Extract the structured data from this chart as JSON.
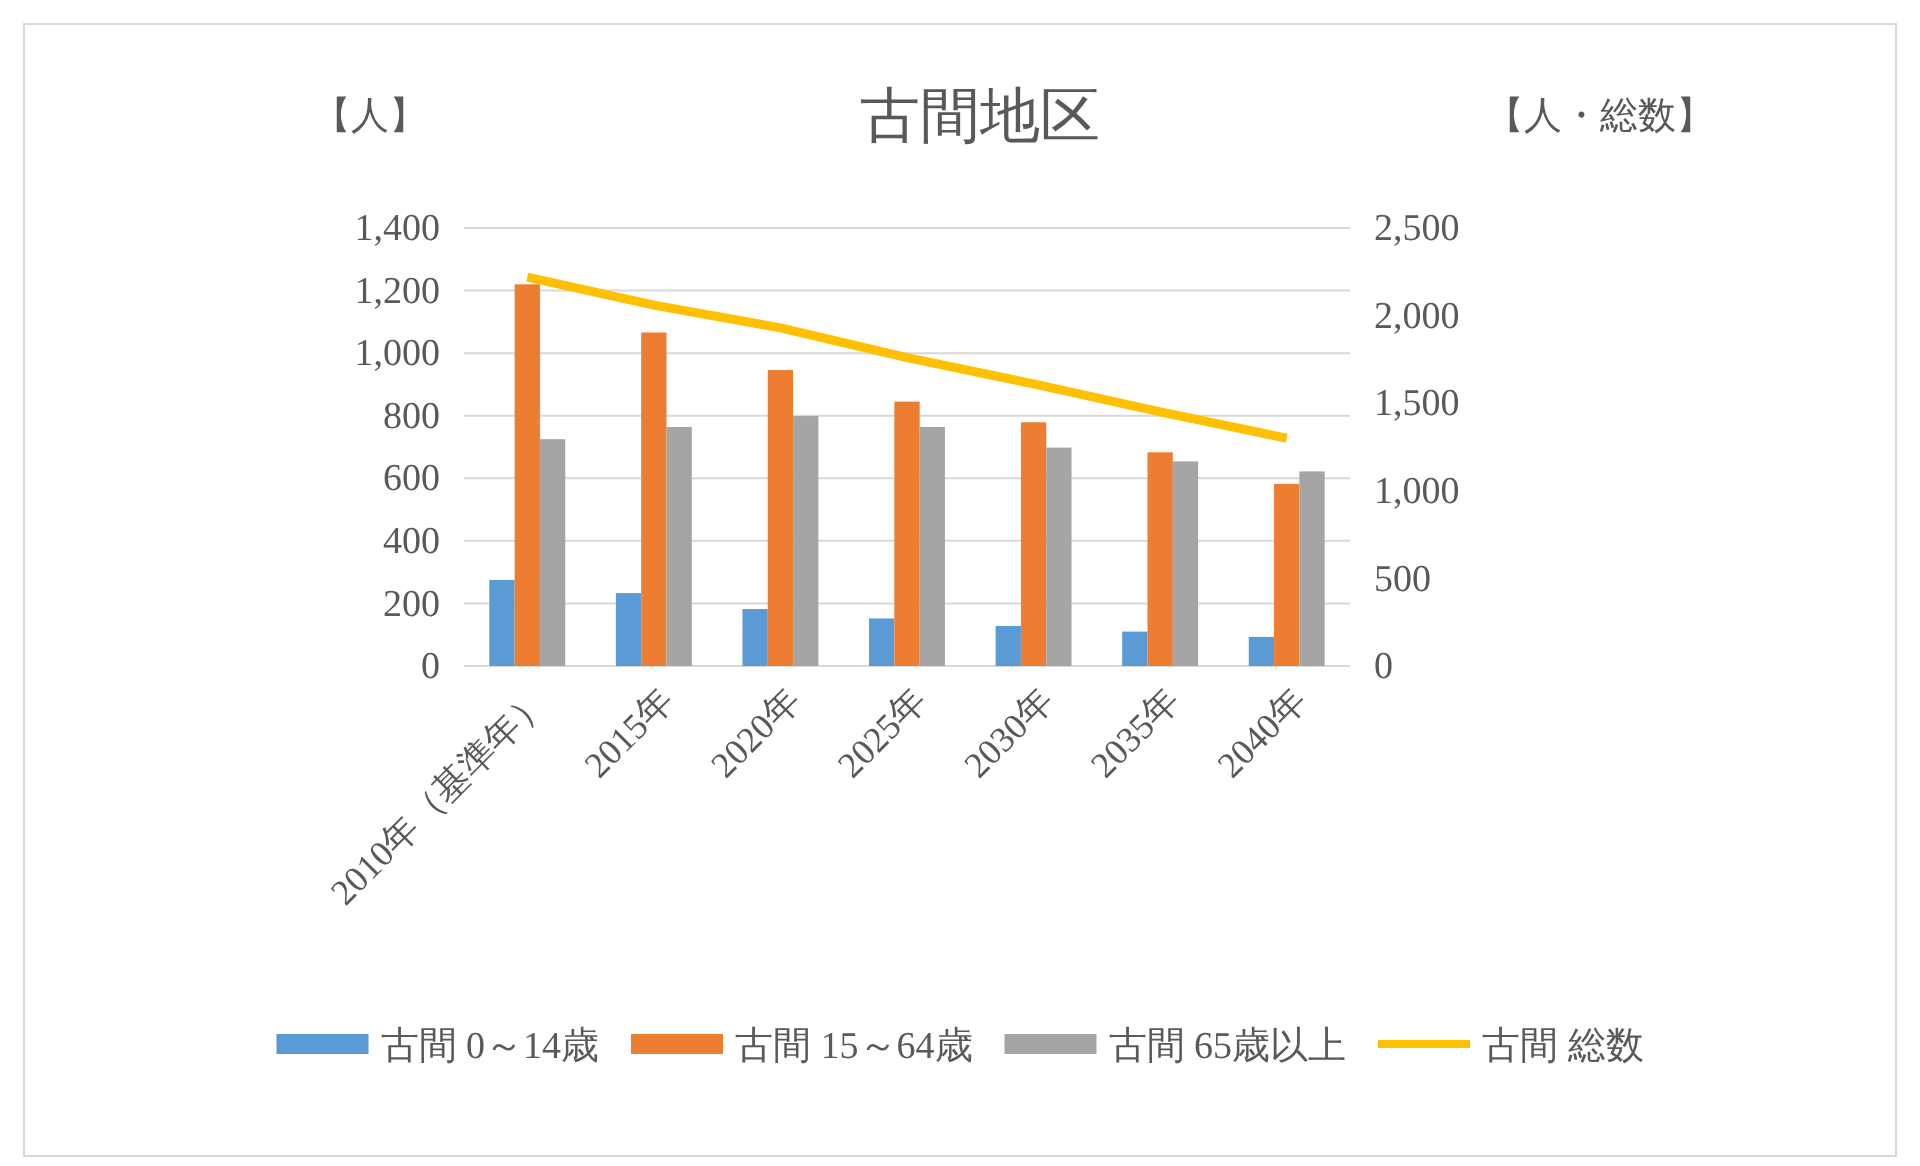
{
  "chart_data": {
    "type": "bar",
    "title": "古間地区",
    "ylabel": "【人】",
    "y2label": "【人・総数】",
    "categories": [
      "2010年（基準年）",
      "2015年",
      "2020年",
      "2025年",
      "2030年",
      "2035年",
      "2040年"
    ],
    "series": [
      {
        "name": "古間 0～14歳",
        "color": "#5b9bd5",
        "values": [
          275,
          233,
          182,
          152,
          128,
          110,
          93
        ]
      },
      {
        "name": "古間 15～64歳",
        "color": "#ed7d31",
        "values": [
          1220,
          1066,
          946,
          845,
          779,
          683,
          582
        ]
      },
      {
        "name": "古間 65歳以上",
        "color": "#a5a5a5",
        "values": [
          725,
          764,
          799,
          764,
          698,
          654,
          622
        ]
      },
      {
        "name": "古間 総数",
        "type": "line",
        "axis": "y2",
        "color": "#ffc000",
        "values": [
          2220,
          2060,
          1930,
          1760,
          1610,
          1450,
          1300
        ]
      }
    ],
    "ylim": [
      0,
      1400
    ],
    "yticks": [
      0,
      {
        "value": 200,
        "label": "200"
      },
      {
        "value": 400,
        "label": "400"
      },
      {
        "value": 600,
        "label": "600"
      },
      {
        "value": 800,
        "label": "800"
      },
      {
        "value": 1000,
        "label": "1,000"
      },
      {
        "value": 1200,
        "label": "1,200"
      },
      {
        "value": 1400,
        "label": "1,400"
      }
    ],
    "y2lim": [
      0,
      2500
    ],
    "y2ticks": [
      0,
      500,
      {
        "value": 1000,
        "label": "1,000"
      },
      {
        "value": 1500,
        "label": "1,500"
      },
      {
        "value": 2000,
        "label": "2,000"
      },
      {
        "value": 2500,
        "label": "2,500"
      }
    ],
    "grid": "y",
    "legend": "bottom",
    "marker": "none"
  }
}
